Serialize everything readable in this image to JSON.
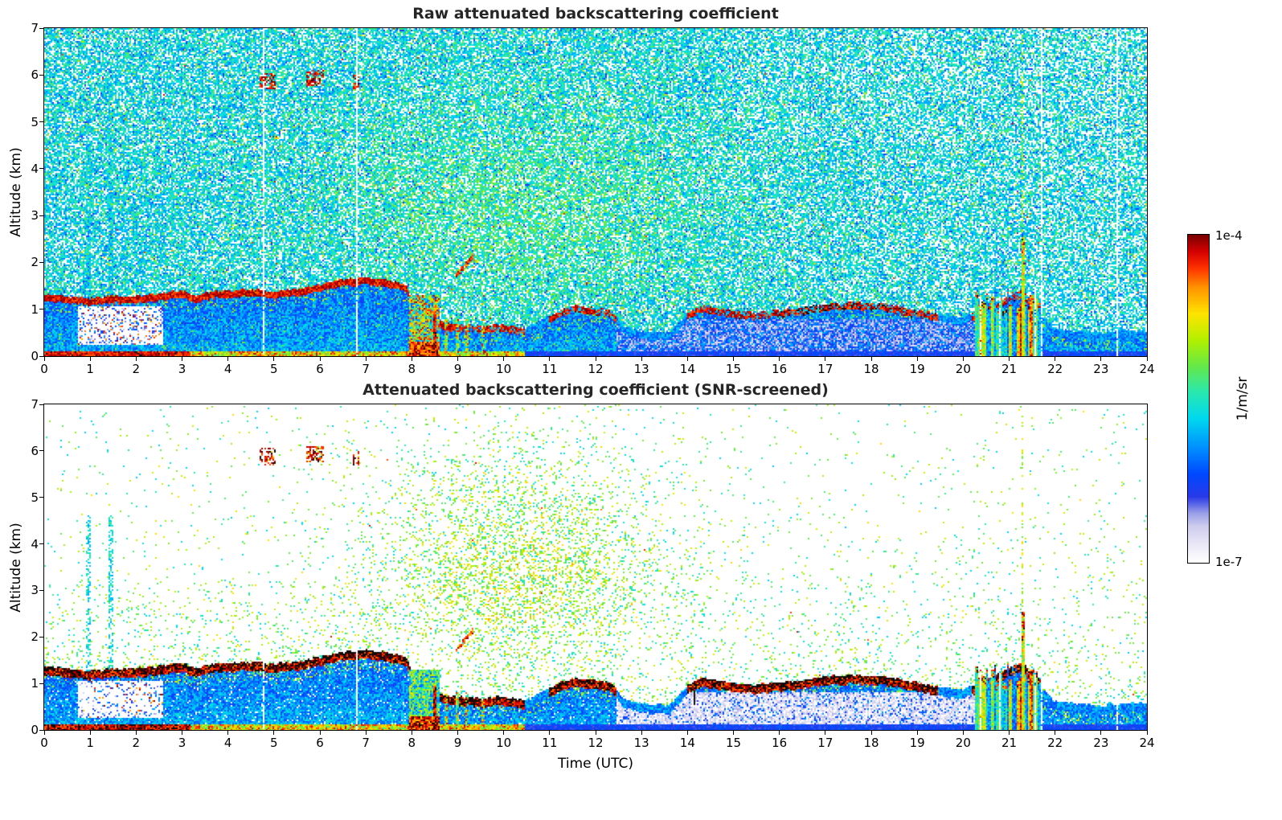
{
  "figure": {
    "background": "#ffffff",
    "colorbar": {
      "top_label": "1e-4",
      "bottom_label": "1e-7",
      "units_label": "1/m/sr"
    }
  },
  "chart_data": [
    {
      "type": "heatmap",
      "title": "Raw attenuated backscattering coefficient",
      "xlabel": "",
      "ylabel": "Altitude (km)",
      "xlim": [
        0,
        24
      ],
      "ylim": [
        0,
        7
      ],
      "xticks": [
        0,
        1,
        2,
        3,
        4,
        5,
        6,
        7,
        8,
        9,
        10,
        11,
        12,
        13,
        14,
        15,
        16,
        17,
        18,
        19,
        20,
        21,
        22,
        23,
        24
      ],
      "yticks": [
        0,
        1,
        2,
        3,
        4,
        5,
        6,
        7
      ],
      "snr_screened": false,
      "colorbar": {
        "min_label": "1e-7",
        "max_label": "1e-4",
        "units": "1/m/sr",
        "scale": "log"
      },
      "grid": false
    },
    {
      "type": "heatmap",
      "title": "Attenuated backscattering coefficient (SNR-screened)",
      "xlabel": "Time (UTC)",
      "ylabel": "Altitude (km)",
      "xlim": [
        0,
        24
      ],
      "ylim": [
        0,
        7
      ],
      "xticks": [
        0,
        1,
        2,
        3,
        4,
        5,
        6,
        7,
        8,
        9,
        10,
        11,
        12,
        13,
        14,
        15,
        16,
        17,
        18,
        19,
        20,
        21,
        22,
        23,
        24
      ],
      "yticks": [
        0,
        1,
        2,
        3,
        4,
        5,
        6,
        7
      ],
      "snr_screened": true,
      "colorbar": {
        "min_label": "1e-7",
        "max_label": "1e-4",
        "units": "1/m/sr",
        "scale": "log"
      },
      "grid": false
    }
  ],
  "colormap": {
    "over": "#120a08",
    "stops": [
      [
        0.0,
        "#ffffff"
      ],
      [
        0.05,
        "#eceaf6"
      ],
      [
        0.11,
        "#cfcdee"
      ],
      [
        0.15,
        "#9aa0e8"
      ],
      [
        0.2,
        "#2a3ae8"
      ],
      [
        0.27,
        "#0048ff"
      ],
      [
        0.35,
        "#0090ff"
      ],
      [
        0.44,
        "#00d8f0"
      ],
      [
        0.52,
        "#2ae8b0"
      ],
      [
        0.6,
        "#66e848"
      ],
      [
        0.68,
        "#b4f000"
      ],
      [
        0.76,
        "#ffe400"
      ],
      [
        0.84,
        "#ff9400"
      ],
      [
        0.9,
        "#ff3000"
      ],
      [
        0.95,
        "#d40000"
      ],
      [
        1.0,
        "#7a0000"
      ]
    ]
  },
  "features": {
    "boundary_layer_top_km": [
      [
        0,
        1.25
      ],
      [
        0.5,
        1.2
      ],
      [
        1,
        1.15
      ],
      [
        1.5,
        1.2
      ],
      [
        2,
        1.2
      ],
      [
        2.5,
        1.25
      ],
      [
        3,
        1.32
      ],
      [
        3.3,
        1.2
      ],
      [
        3.7,
        1.3
      ],
      [
        4.5,
        1.35
      ],
      [
        5,
        1.3
      ],
      [
        5.5,
        1.35
      ],
      [
        6,
        1.45
      ],
      [
        6.5,
        1.55
      ],
      [
        7,
        1.6
      ],
      [
        7.5,
        1.55
      ],
      [
        7.9,
        1.45
      ],
      [
        8.05,
        0.85
      ],
      [
        8.3,
        0.6
      ],
      [
        8.6,
        0.65
      ],
      [
        9,
        0.6
      ],
      [
        9.5,
        0.55
      ],
      [
        10,
        0.6
      ],
      [
        10.5,
        0.5
      ],
      [
        11,
        0.78
      ],
      [
        11.35,
        0.95
      ],
      [
        11.7,
        1.0
      ],
      [
        12,
        0.95
      ],
      [
        12.35,
        0.88
      ],
      [
        12.6,
        0.55
      ],
      [
        13,
        0.45
      ],
      [
        13.6,
        0.4
      ],
      [
        14,
        0.85
      ],
      [
        14.3,
        1.0
      ],
      [
        15,
        0.9
      ],
      [
        15.5,
        0.85
      ],
      [
        16,
        0.9
      ],
      [
        16.5,
        0.95
      ],
      [
        17,
        1.02
      ],
      [
        17.5,
        1.06
      ],
      [
        18,
        1.05
      ],
      [
        18.5,
        1.0
      ],
      [
        19,
        0.9
      ],
      [
        19.5,
        0.8
      ],
      [
        20,
        0.75
      ],
      [
        20.5,
        0.95
      ],
      [
        21,
        1.2
      ],
      [
        21.3,
        1.35
      ],
      [
        21.6,
        0.9
      ],
      [
        22,
        0.5
      ],
      [
        22.5,
        0.45
      ],
      [
        23,
        0.4
      ],
      [
        23.5,
        0.45
      ],
      [
        24,
        0.45
      ]
    ],
    "strong_cap_intervals_utc": [
      [
        0,
        8.3
      ],
      [
        8.55,
        10.45
      ],
      [
        11,
        12.45
      ],
      [
        14,
        19.45
      ],
      [
        20.2,
        21.7
      ]
    ],
    "surface_aerosol_red_until_utc": 3.2,
    "elevated_cloud_events": [
      {
        "t0": 4.7,
        "t1": 5.05,
        "alt0": 5.7,
        "alt1": 6.05
      },
      {
        "t0": 5.7,
        "t1": 6.1,
        "alt0": 5.75,
        "alt1": 6.1
      },
      {
        "t0": 6.72,
        "t1": 6.85,
        "alt0": 5.7,
        "alt1": 6.0
      }
    ],
    "precipitation_event_utc": {
      "t0": 7.95,
      "t1": 8.6
    },
    "drizzle_columns_utc": [
      8.75,
      9.0,
      9.2,
      9.55
    ],
    "slant_streak": {
      "t0": 8.95,
      "t1": 9.35,
      "alt0": 1.7,
      "alt1": 2.15
    },
    "dropout_region": {
      "t0": 0.75,
      "t1": 2.6,
      "alt0": 0.25,
      "alt1": 1.05
    },
    "evening_activity_utc": {
      "t0": 20.25,
      "t1": 21.7
    },
    "tall_column_utc": 21.3,
    "dark_spike_utc": 14.15,
    "gap_stripes_utc": [
      4.78,
      6.8,
      21.72,
      23.35
    ],
    "bright_noise_columns_utc": [
      0.95,
      1.45
    ]
  }
}
